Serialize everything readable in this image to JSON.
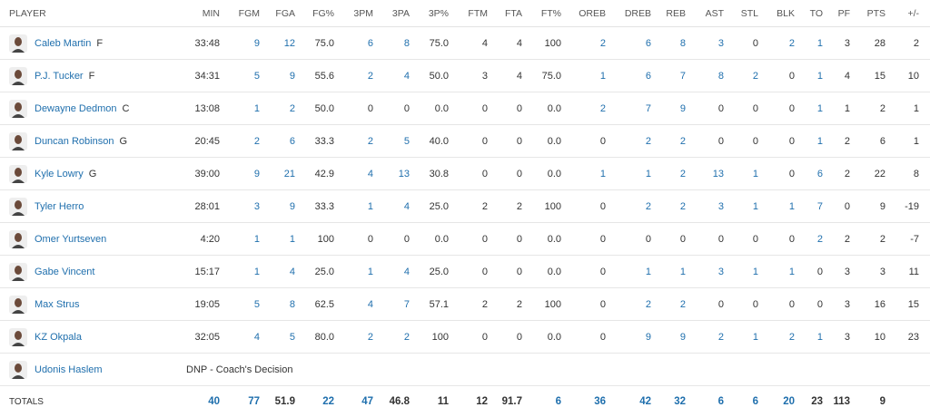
{
  "table": {
    "columns": [
      "PLAYER",
      "MIN",
      "FGM",
      "FGA",
      "FG%",
      "3PM",
      "3PA",
      "3P%",
      "FTM",
      "FTA",
      "FT%",
      "OREB",
      "DREB",
      "REB",
      "AST",
      "STL",
      "BLK",
      "TO",
      "PF",
      "PTS",
      "+/-"
    ],
    "players": [
      {
        "name": "Caleb Martin",
        "position": "F",
        "stats": [
          "33:48",
          "9",
          "12",
          "75.0",
          "6",
          "8",
          "75.0",
          "4",
          "4",
          "100",
          "2",
          "6",
          "8",
          "3",
          "0",
          "2",
          "1",
          "3",
          "28",
          "2"
        ]
      },
      {
        "name": "P.J. Tucker",
        "position": "F",
        "stats": [
          "34:31",
          "5",
          "9",
          "55.6",
          "2",
          "4",
          "50.0",
          "3",
          "4",
          "75.0",
          "1",
          "6",
          "7",
          "8",
          "2",
          "0",
          "1",
          "4",
          "15",
          "10"
        ]
      },
      {
        "name": "Dewayne Dedmon",
        "position": "C",
        "stats": [
          "13:08",
          "1",
          "2",
          "50.0",
          "0",
          "0",
          "0.0",
          "0",
          "0",
          "0.0",
          "2",
          "7",
          "9",
          "0",
          "0",
          "0",
          "1",
          "1",
          "2",
          "1"
        ]
      },
      {
        "name": "Duncan Robinson",
        "position": "G",
        "stats": [
          "20:45",
          "2",
          "6",
          "33.3",
          "2",
          "5",
          "40.0",
          "0",
          "0",
          "0.0",
          "0",
          "2",
          "2",
          "0",
          "0",
          "0",
          "1",
          "2",
          "6",
          "1"
        ]
      },
      {
        "name": "Kyle Lowry",
        "position": "G",
        "stats": [
          "39:00",
          "9",
          "21",
          "42.9",
          "4",
          "13",
          "30.8",
          "0",
          "0",
          "0.0",
          "1",
          "1",
          "2",
          "13",
          "1",
          "0",
          "6",
          "2",
          "22",
          "8"
        ]
      },
      {
        "name": "Tyler Herro",
        "stats": [
          "28:01",
          "3",
          "9",
          "33.3",
          "1",
          "4",
          "25.0",
          "2",
          "2",
          "100",
          "0",
          "2",
          "2",
          "3",
          "1",
          "1",
          "7",
          "0",
          "9",
          "-19"
        ]
      },
      {
        "name": "Omer Yurtseven",
        "stats": [
          "4:20",
          "1",
          "1",
          "100",
          "0",
          "0",
          "0.0",
          "0",
          "0",
          "0.0",
          "0",
          "0",
          "0",
          "0",
          "0",
          "0",
          "2",
          "2",
          "2",
          "-7"
        ]
      },
      {
        "name": "Gabe Vincent",
        "stats": [
          "15:17",
          "1",
          "4",
          "25.0",
          "1",
          "4",
          "25.0",
          "0",
          "0",
          "0.0",
          "0",
          "1",
          "1",
          "3",
          "1",
          "1",
          "0",
          "3",
          "3",
          "11"
        ]
      },
      {
        "name": "Max Strus",
        "stats": [
          "19:05",
          "5",
          "8",
          "62.5",
          "4",
          "7",
          "57.1",
          "2",
          "2",
          "100",
          "0",
          "2",
          "2",
          "0",
          "0",
          "0",
          "0",
          "3",
          "16",
          "15"
        ]
      },
      {
        "name": "KZ Okpala",
        "stats": [
          "32:05",
          "4",
          "5",
          "80.0",
          "2",
          "2",
          "100",
          "0",
          "0",
          "0.0",
          "0",
          "9",
          "9",
          "2",
          "1",
          "2",
          "1",
          "3",
          "10",
          "23"
        ]
      },
      {
        "name": "Udonis Haslem",
        "note": "DNP - Coach's Decision"
      }
    ],
    "totals": {
      "label": "TOTALS",
      "stats": [
        "40",
        "77",
        "51.9",
        "22",
        "47",
        "46.8",
        "11",
        "12",
        "91.7",
        "6",
        "36",
        "42",
        "32",
        "6",
        "6",
        "20",
        "23",
        "113",
        "9"
      ]
    }
  }
}
